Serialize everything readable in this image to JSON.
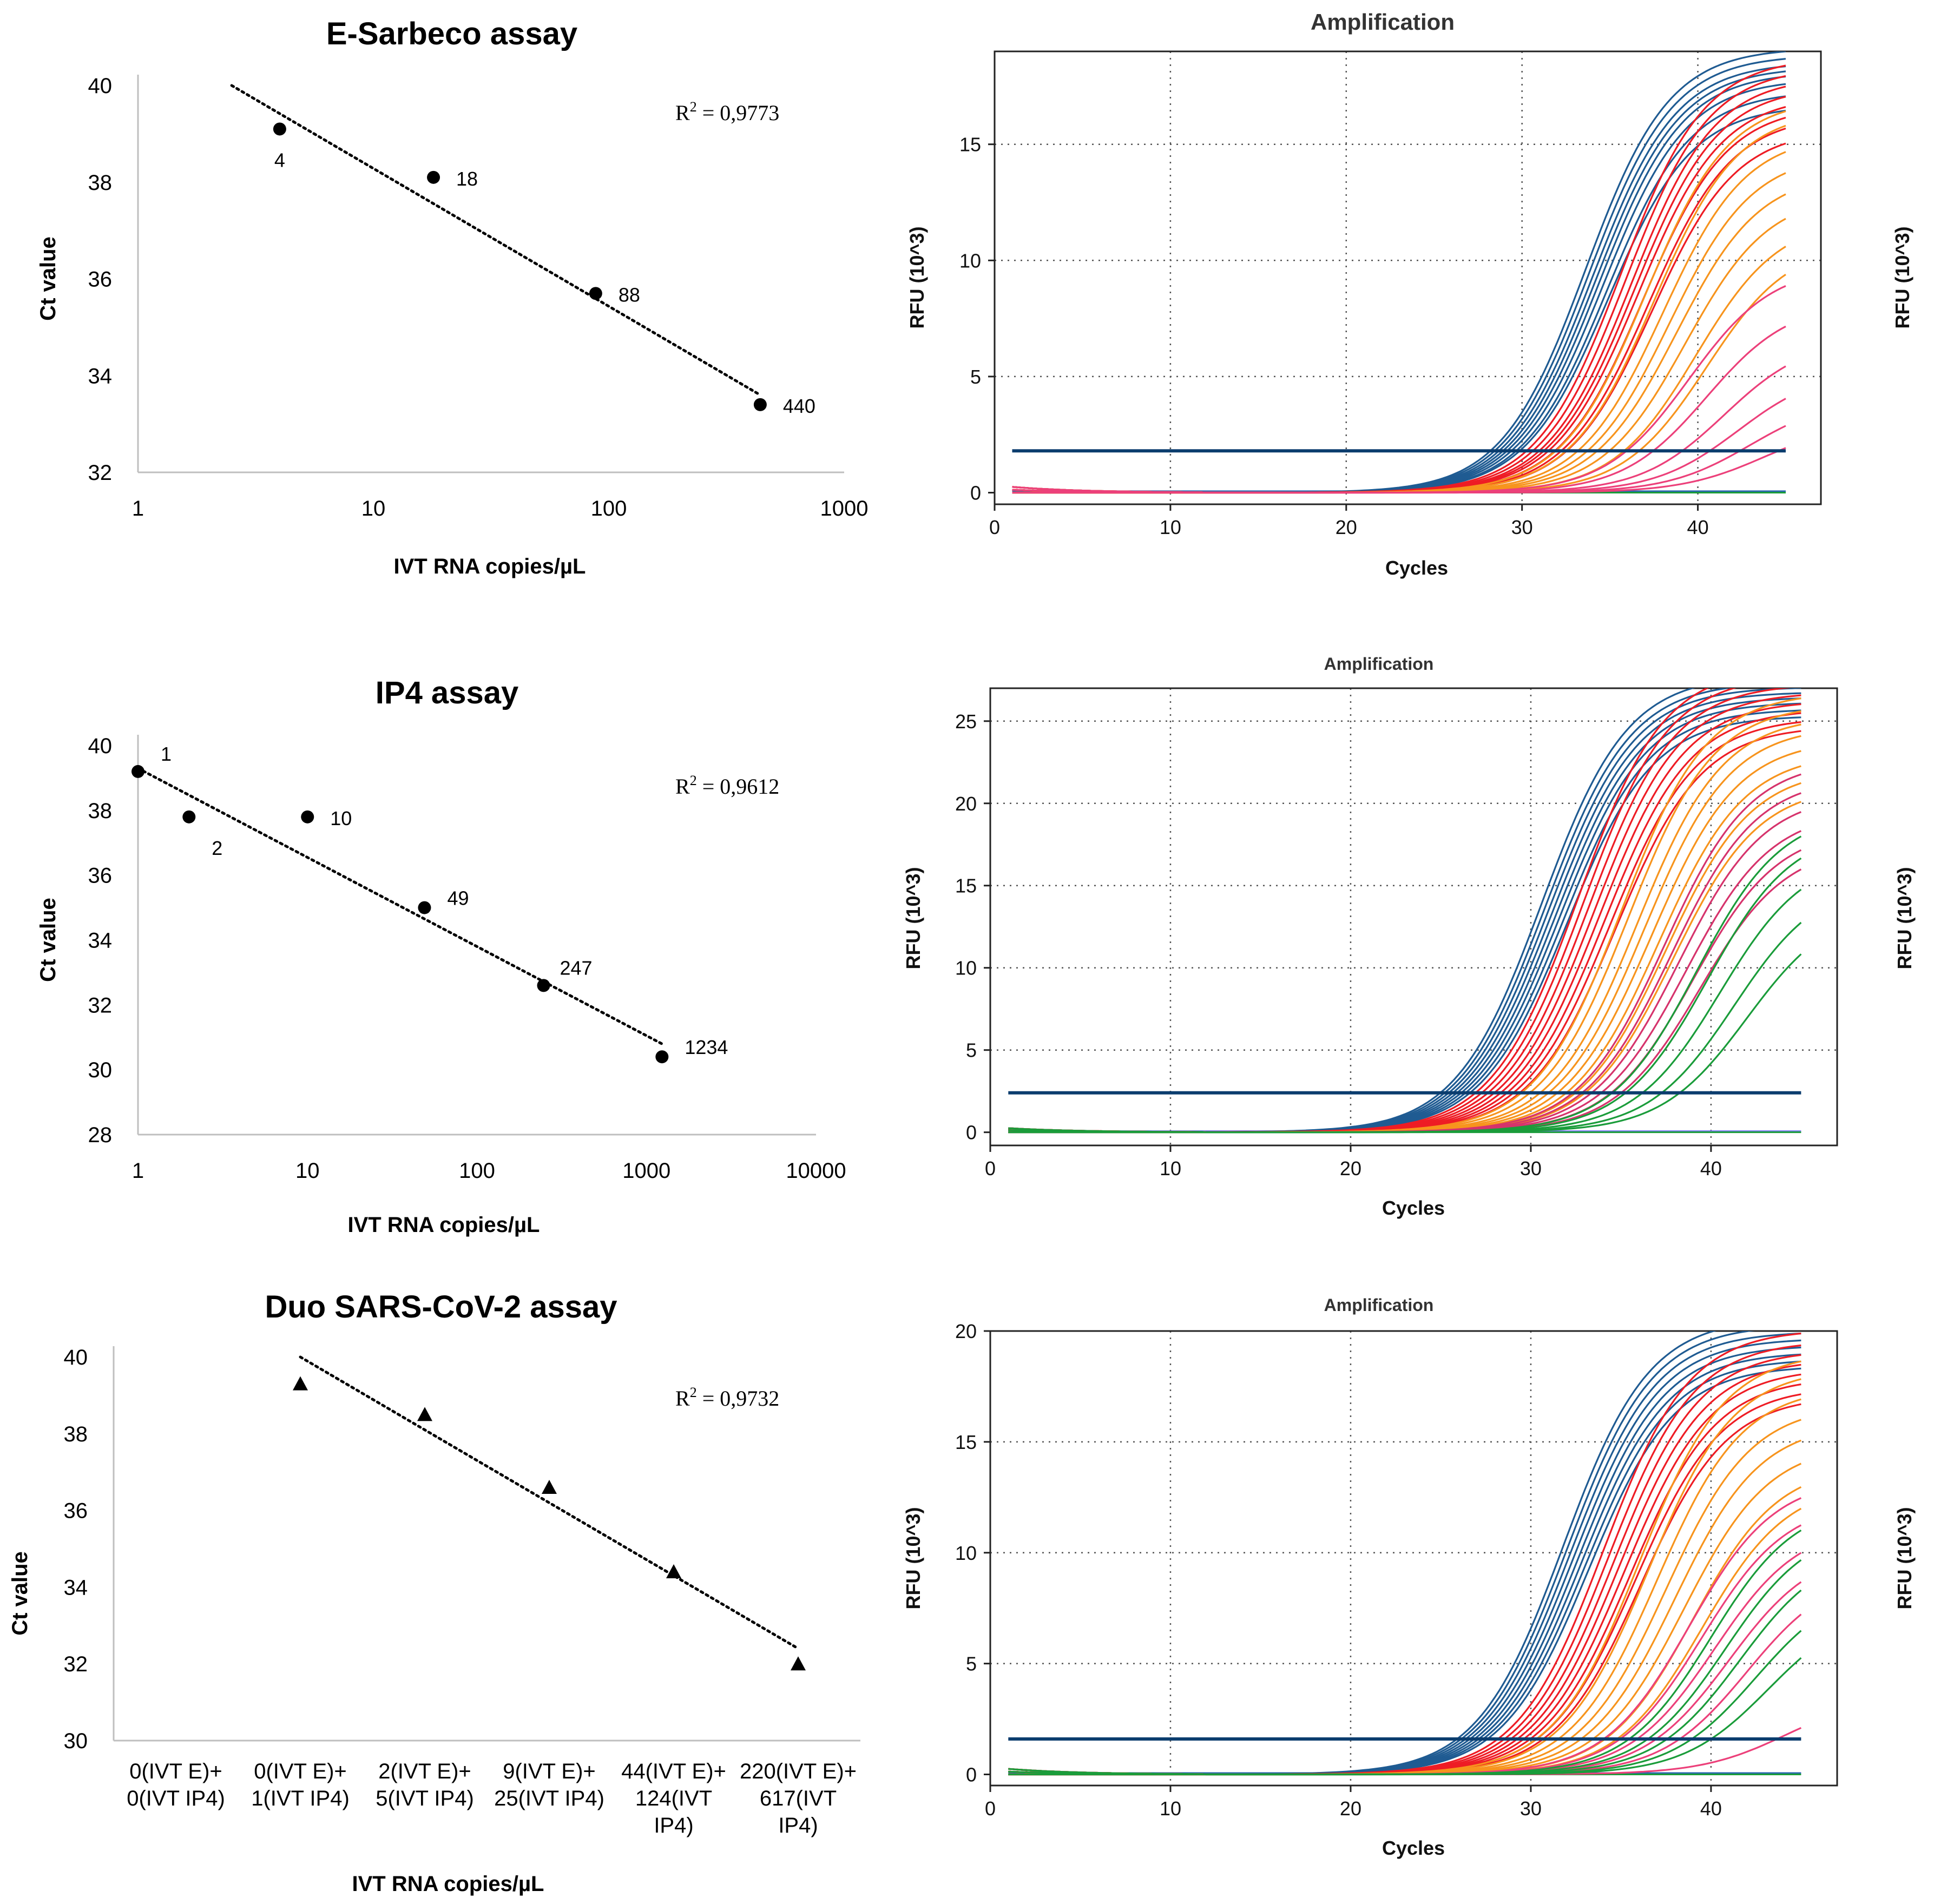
{
  "chart_data": [
    {
      "type": "scatter",
      "title": "E-Sarbeco assay",
      "xlabel": "IVT RNA copies/µL",
      "ylabel": "Ct value",
      "xscale": "log",
      "xlim": [
        1,
        1000
      ],
      "ylim": [
        32,
        40
      ],
      "xticks": [
        "1",
        "10",
        "100",
        "1000"
      ],
      "yticks": [
        "32",
        "34",
        "36",
        "38",
        "40"
      ],
      "marker": "circle",
      "points": [
        {
          "x": 4,
          "y": 39.1,
          "label": "4"
        },
        {
          "x": 18,
          "y": 38.1,
          "label": "18"
        },
        {
          "x": 88,
          "y": 35.7,
          "label": "88"
        },
        {
          "x": 440,
          "y": 33.4,
          "label": "440"
        }
      ],
      "trendline": {
        "x": [
          2.5,
          440
        ],
        "y": [
          40.0,
          33.6
        ]
      },
      "r2_prefix": "R",
      "r2_value": " = 0,9773"
    },
    {
      "type": "scatter",
      "title": "IP4 assay",
      "xlabel": "IVT RNA copies/µL",
      "ylabel": "Ct value",
      "xscale": "log",
      "xlim": [
        1,
        10000
      ],
      "ylim": [
        28,
        40
      ],
      "xticks": [
        "1",
        "10",
        "100",
        "1000",
        "10000"
      ],
      "yticks": [
        "28",
        "30",
        "32",
        "34",
        "36",
        "38",
        "40"
      ],
      "marker": "circle",
      "points": [
        {
          "x": 1,
          "y": 39.2,
          "label": "1"
        },
        {
          "x": 2,
          "y": 37.8,
          "label": "2"
        },
        {
          "x": 10,
          "y": 37.8,
          "label": "10"
        },
        {
          "x": 49,
          "y": 35.0,
          "label": "49"
        },
        {
          "x": 247,
          "y": 32.6,
          "label": "247"
        },
        {
          "x": 1234,
          "y": 30.4,
          "label": "1234"
        }
      ],
      "trendline": {
        "x": [
          1,
          1234
        ],
        "y": [
          39.3,
          30.8
        ]
      },
      "r2_prefix": "R",
      "r2_value": " = 0,9612"
    },
    {
      "type": "scatter",
      "title": "Duo SARS-CoV-2 assay",
      "xlabel": "IVT RNA copies/µL",
      "ylabel": "Ct value",
      "xscale": "category",
      "ylim": [
        30,
        40
      ],
      "yticks": [
        "30",
        "32",
        "34",
        "36",
        "38",
        "40"
      ],
      "categories": [
        [
          "0(IVT E)+",
          "0(IVT IP4)"
        ],
        [
          "0(IVT E)+",
          "1(IVT IP4)"
        ],
        [
          "2(IVT E)+",
          "5(IVT IP4)"
        ],
        [
          "9(IVT E)+",
          "25(IVT IP4)"
        ],
        [
          "44(IVT E)+",
          "124(IVT",
          "IP4)"
        ],
        [
          "220(IVT E)+",
          "617(IVT",
          "IP4)"
        ]
      ],
      "marker": "triangle",
      "values": [
        null,
        39.3,
        38.5,
        36.6,
        34.4,
        32.0
      ],
      "trendline": {
        "x": [
          1,
          5
        ],
        "y": [
          40.0,
          32.4
        ]
      },
      "r2_prefix": "R",
      "r2_value": " = 0,9732"
    },
    {
      "type": "line",
      "title": "Amplification",
      "xlabel": "Cycles",
      "ylabel": "RFU (10^3)",
      "xlim": [
        0,
        47
      ],
      "ylim": [
        -0.5,
        19
      ],
      "xticks": [
        0,
        10,
        20,
        30,
        40
      ],
      "yticks": [
        0,
        5,
        10,
        15
      ],
      "threshold": 1.8,
      "series": [
        {
          "name": "blue",
          "color": "#1f5b92",
          "ct": [
            33.6,
            33.8,
            34.0,
            34.2,
            34.4,
            34.6,
            34.8,
            34.9
          ],
          "plateau": [
            18.6,
            18.3,
            18.0,
            17.8,
            17.6,
            17.3,
            16.8,
            16.2
          ]
        },
        {
          "name": "red",
          "color": "#ee1c24",
          "ct": [
            35.6,
            35.9,
            36.2,
            36.4,
            36.6,
            36.9,
            37.2,
            37.4
          ],
          "plateau": [
            18.2,
            17.8,
            17.4,
            17.0,
            16.6,
            16.2,
            15.8,
            15.2
          ]
        },
        {
          "name": "orange",
          "color": "#f7941d",
          "ct": [
            37.0,
            37.5,
            38.0,
            38.4,
            38.8,
            39.3,
            39.9,
            40.5
          ],
          "plateau": [
            16.5,
            16.0,
            15.0,
            14.2,
            13.4,
            12.5,
            11.5,
            10.5
          ]
        },
        {
          "name": "pink",
          "color": "#ec407a",
          "ct": [
            39.5,
            40.5,
            41.5,
            42.3,
            43.0,
            43.8
          ],
          "plateau": [
            9.5,
            8.0,
            6.5,
            5.2,
            4.0,
            3.0
          ]
        }
      ]
    },
    {
      "type": "line",
      "title": "Amplification",
      "xlabel": "Cycles",
      "ylabel": "RFU (10^3)",
      "xlim": [
        0,
        47
      ],
      "ylim": [
        -0.8,
        27
      ],
      "xticks": [
        0,
        10,
        20,
        30,
        40
      ],
      "yticks": [
        0,
        5,
        10,
        15,
        20,
        25
      ],
      "threshold": 2.4,
      "series": [
        {
          "name": "blue",
          "color": "#1f5b92",
          "ct": [
            30.6,
            30.8,
            31.0,
            31.2,
            31.4,
            31.6,
            31.8,
            32.0
          ],
          "plateau": [
            27.0,
            26.6,
            26.3,
            26.0,
            25.7,
            25.4,
            25.0,
            24.6
          ]
        },
        {
          "name": "red",
          "color": "#ee1c24",
          "ct": [
            32.6,
            32.9,
            33.2,
            33.5,
            33.8,
            34.1,
            34.4,
            34.7
          ],
          "plateau": [
            27.5,
            27.0,
            26.5,
            26.0,
            25.5,
            25.0,
            24.5,
            24.0
          ]
        },
        {
          "name": "orange",
          "color": "#f7941d",
          "ct": [
            35.0,
            35.4,
            35.9,
            36.3,
            36.7,
            37.1,
            37.5,
            37.9
          ],
          "plateau": [
            26.0,
            25.3,
            24.6,
            24.0,
            23.2,
            22.4,
            21.5,
            20.5
          ]
        },
        {
          "name": "pink",
          "color": "#d6336c",
          "ct": [
            37.4,
            37.8,
            38.2,
            38.6,
            39.0,
            39.4
          ],
          "plateau": [
            22.0,
            21.0,
            20.0,
            19.0,
            18.0,
            17.0
          ]
        },
        {
          "name": "green",
          "color": "#1a9c3a",
          "ct": [
            39.2,
            39.8,
            40.5,
            41.3,
            42.0
          ],
          "plateau": [
            19.0,
            18.0,
            16.5,
            15.0,
            13.5
          ]
        }
      ]
    },
    {
      "type": "line",
      "title": "Amplification",
      "xlabel": "Cycles",
      "ylabel": "RFU (10^3)",
      "xlim": [
        0,
        47
      ],
      "ylim": [
        -0.5,
        20
      ],
      "xticks": [
        0,
        10,
        20,
        30,
        40
      ],
      "yticks": [
        0,
        5,
        10,
        15,
        20
      ],
      "threshold": 1.6,
      "series": [
        {
          "name": "blue",
          "color": "#1f5b92",
          "ct": [
            31.8,
            32.0,
            32.2,
            32.4,
            32.6,
            32.8,
            33.0,
            33.2
          ],
          "plateau": [
            20.0,
            19.7,
            19.4,
            19.1,
            18.8,
            18.5,
            18.2,
            17.9
          ]
        },
        {
          "name": "red",
          "color": "#ee1c24",
          "ct": [
            34.0,
            34.3,
            34.6,
            34.9,
            35.2,
            35.5,
            35.8,
            36.1
          ],
          "plateau": [
            19.5,
            19.0,
            18.6,
            18.2,
            17.8,
            17.4,
            17.0,
            16.6
          ]
        },
        {
          "name": "orange",
          "color": "#f7941d",
          "ct": [
            36.0,
            36.5,
            37.0,
            37.5,
            38.0,
            38.5,
            39.0,
            39.5
          ],
          "plateau": [
            18.5,
            17.8,
            17.0,
            16.2,
            15.4,
            14.5,
            13.6,
            12.8
          ]
        },
        {
          "name": "pink",
          "color": "#ec407a",
          "ct": [
            38.8,
            39.5,
            40.2,
            41.0,
            42.0,
            44.2
          ],
          "plateau": [
            13.0,
            12.0,
            11.0,
            10.0,
            9.0,
            3.5
          ]
        },
        {
          "name": "green",
          "color": "#1a9c3a",
          "ct": [
            40.0,
            40.8,
            41.6,
            42.5,
            43.2
          ],
          "plateau": [
            12.0,
            11.0,
            10.0,
            8.5,
            7.5
          ]
        }
      ]
    }
  ]
}
